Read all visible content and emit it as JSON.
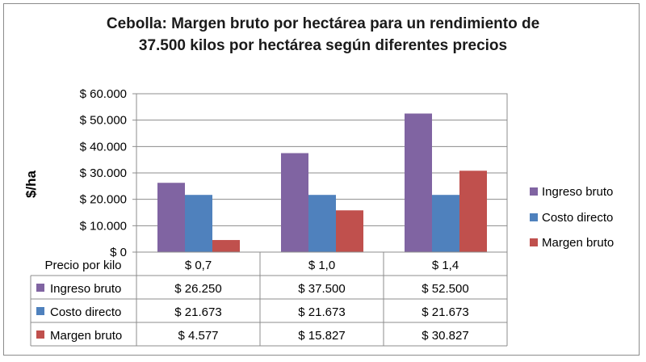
{
  "chart_data": {
    "type": "bar",
    "title_line1": "Cebolla: Margen bruto por hectárea para un rendimiento de",
    "title_line2": "37.500 kilos por hectárea según diferentes precios",
    "ylabel": "$/ha",
    "xlabel": "Precio por kilo",
    "categories": [
      "$ 0,7",
      "$ 1,0",
      "$ 1,4"
    ],
    "yticks": [
      "$ 0",
      "$ 10.000",
      "$ 20.000",
      "$ 30.000",
      "$ 40.000",
      "$ 50.000",
      "$ 60.000"
    ],
    "ylim": [
      0,
      60000
    ],
    "grid": true,
    "legend_position": "right",
    "series": [
      {
        "name": "Ingreso bruto",
        "color": "#8064a2",
        "values": [
          26250,
          37500,
          52500
        ],
        "labels": [
          "$ 26.250",
          "$ 37.500",
          "$ 52.500"
        ]
      },
      {
        "name": "Costo directo",
        "color": "#4f81bd",
        "values": [
          21673,
          21673,
          21673
        ],
        "labels": [
          "$ 21.673",
          "$ 21.673",
          "$ 21.673"
        ]
      },
      {
        "name": "Margen bruto",
        "color": "#c0504d",
        "values": [
          4577,
          15827,
          30827
        ],
        "labels": [
          "$ 4.577",
          "$ 15.827",
          "$ 30.827"
        ]
      }
    ]
  }
}
